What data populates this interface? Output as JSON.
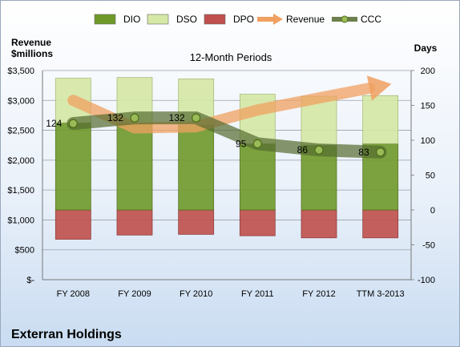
{
  "company": "Exterran Holdings",
  "chart_data": {
    "type": "bar",
    "title": "12-Month Periods",
    "categories": [
      "FY 2008",
      "FY 2009",
      "FY 2010",
      "FY 2011",
      "FY 2012",
      "TTM 3-2013"
    ],
    "left_axis": {
      "label_line1": "Revenue",
      "label_line2": "$millions",
      "range": [
        0,
        3500
      ],
      "ticks": [
        {
          "value": 0,
          "label": "$-"
        },
        {
          "value": 500,
          "label": "$500"
        },
        {
          "value": 1000,
          "label": "$1,000"
        },
        {
          "value": 1500,
          "label": "$1,500"
        },
        {
          "value": 2000,
          "label": "$2,000"
        },
        {
          "value": 2500,
          "label": "$2,500"
        },
        {
          "value": 3000,
          "label": "$3,000"
        },
        {
          "value": 3500,
          "label": "$3,500"
        }
      ]
    },
    "right_axis": {
      "label": "Days",
      "range": [
        -100,
        200
      ],
      "ticks": [
        {
          "value": -100,
          "label": "-100"
        },
        {
          "value": -50,
          "label": "-50"
        },
        {
          "value": 0,
          "label": "0"
        },
        {
          "value": 50,
          "label": "50"
        },
        {
          "value": 100,
          "label": "100"
        },
        {
          "value": 150,
          "label": "150"
        },
        {
          "value": 200,
          "label": "200"
        }
      ]
    },
    "legend": [
      {
        "name": "DIO",
        "kind": "bar",
        "color": "#6f9a2a"
      },
      {
        "name": "DSO",
        "kind": "bar",
        "color": "#d6e8a6"
      },
      {
        "name": "DPO",
        "kind": "bar",
        "color": "#c0504d"
      },
      {
        "name": "Revenue",
        "kind": "arrow",
        "color": "#f0a060"
      },
      {
        "name": "CCC",
        "kind": "line",
        "color": "#556b2f"
      }
    ],
    "series": [
      {
        "name": "DIO",
        "axis": "days",
        "values": [
          125,
          124,
          122,
          95,
          93,
          95
        ]
      },
      {
        "name": "DSO",
        "axis": "days",
        "values": [
          64,
          66,
          66,
          71,
          70,
          69
        ]
      },
      {
        "name": "DPO",
        "axis": "days",
        "values": [
          -42,
          -36,
          -35,
          -37,
          -40,
          -40
        ]
      },
      {
        "name": "CCC",
        "axis": "days",
        "values": [
          124,
          132,
          132,
          95,
          86,
          83
        ]
      },
      {
        "name": "Revenue",
        "axis": "revenue",
        "trend": [
          3000,
          2540,
          2560,
          2840,
          3040,
          3240
        ]
      }
    ],
    "ccc_labels": [
      "124",
      "132",
      "132",
      "95",
      "86",
      "83"
    ],
    "colors": {
      "dio": "#6f9a2a",
      "dso": "#d6e8a6",
      "dpo": "#c0504d",
      "revenue": "#f0a060",
      "ccc": "#556b2f",
      "grid": "#9aa0a8"
    }
  }
}
